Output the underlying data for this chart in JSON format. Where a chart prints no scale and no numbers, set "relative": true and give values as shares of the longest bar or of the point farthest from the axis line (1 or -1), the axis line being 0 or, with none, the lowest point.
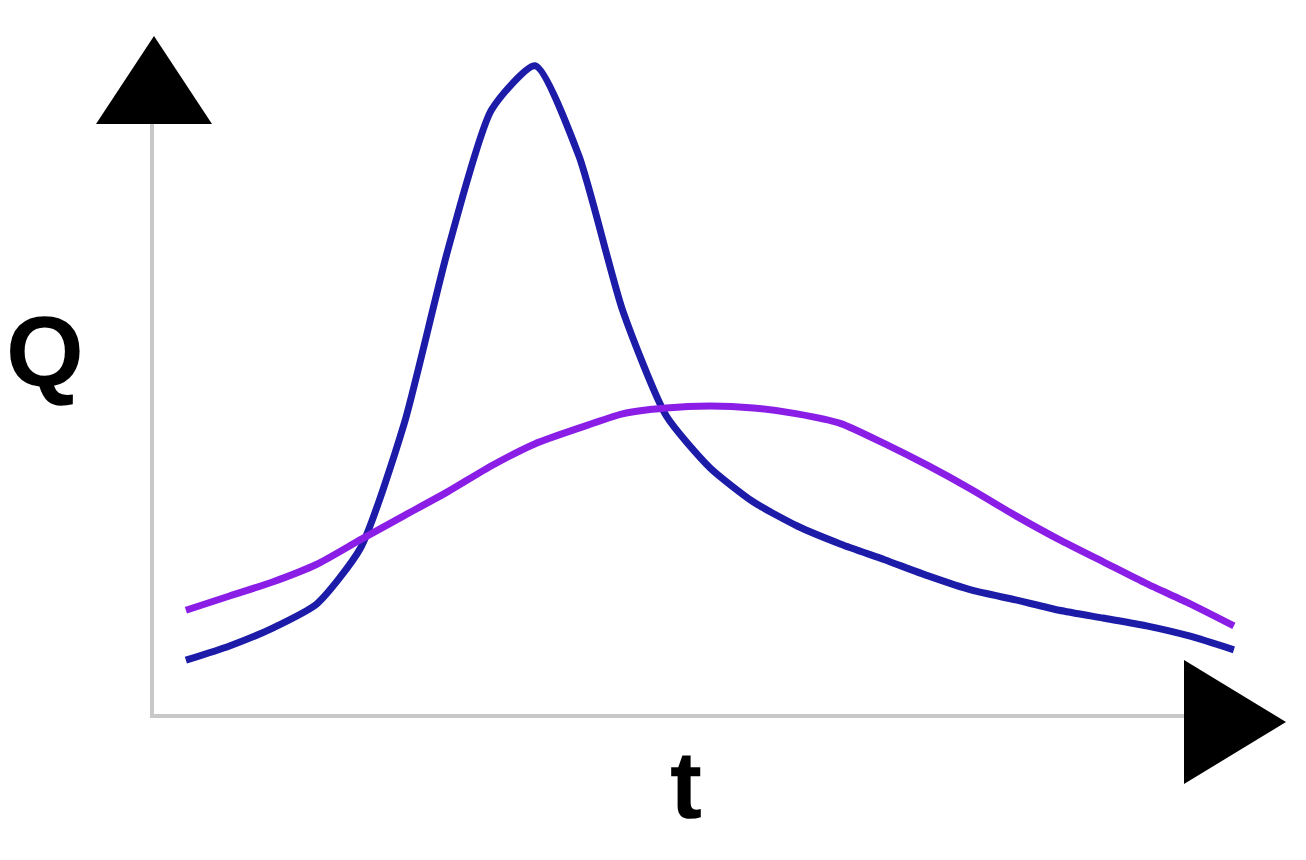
{
  "chart_data": {
    "type": "line",
    "relative": true,
    "xlabel": "t",
    "ylabel": "Q",
    "grid": false,
    "marker": "none",
    "line_style": "solid",
    "categories": [
      null,
      null,
      null,
      null,
      null,
      null,
      null,
      null,
      null,
      null,
      null,
      null,
      null,
      null,
      null,
      null,
      null,
      null,
      null,
      null,
      null,
      null,
      null,
      null,
      null
    ],
    "series": [
      {
        "color": "#1c1ca8",
        "values": [
          0.083,
          0.105,
          0.133,
          0.17,
          0.256,
          0.448,
          0.716,
          0.932,
          1,
          0.861,
          0.623,
          0.46,
          0.38,
          0.327,
          0.29,
          0.262,
          0.238,
          0.213,
          0.191,
          0.176,
          0.16,
          0.148,
          0.136,
          0.12,
          0.099
        ]
      },
      {
        "color": "#8a1ee6",
        "values": [
          0.16,
          0.182,
          0.204,
          0.231,
          0.269,
          0.306,
          0.343,
          0.383,
          0.417,
          0.441,
          0.463,
          0.472,
          0.475,
          0.472,
          0.463,
          0.448,
          0.417,
          0.383,
          0.346,
          0.306,
          0.269,
          0.235,
          0.201,
          0.17,
          0.136
        ]
      }
    ]
  }
}
